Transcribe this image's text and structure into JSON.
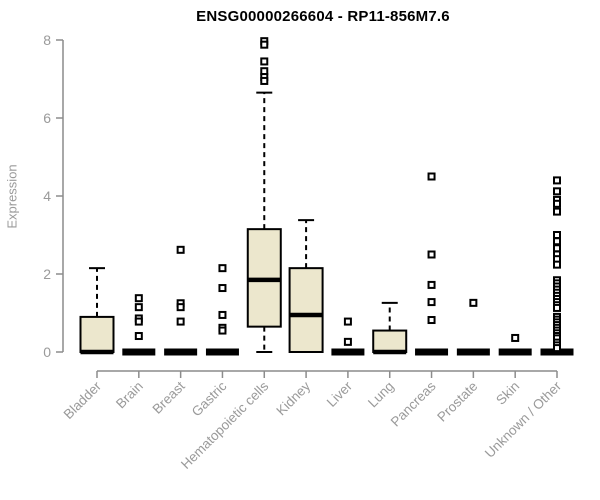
{
  "title": "ENSG00000266604 - RP11-856M7.6",
  "chart_data": {
    "type": "boxplot",
    "title": "ENSG00000266604 - RP11-856M7.6",
    "xlabel": "",
    "ylabel": "Expression",
    "ylim": [
      0,
      8
    ],
    "yticks": [
      0,
      2,
      4,
      6,
      8
    ],
    "grid": false,
    "legend": "none",
    "box_fill_color": "#ece7cd",
    "box_stroke_color": "#000000",
    "axis_color": "#8c8c8c",
    "tick_label_color": "#9a9a9a",
    "categories": [
      "Bladder",
      "Brain",
      "Breast",
      "Gastric",
      "Hematopoietic cells",
      "Kidney",
      "Liver",
      "Lung",
      "Pancreas",
      "Prostate",
      "Skin",
      "Unknown / Other"
    ],
    "series": [
      {
        "category": "Bladder",
        "q1": 0,
        "median": 0,
        "q3": 0.9,
        "whisker_low": 0,
        "whisker_high": 2.15,
        "outliers": []
      },
      {
        "category": "Brain",
        "q1": 0,
        "median": 0,
        "q3": 0,
        "whisker_low": 0,
        "whisker_high": 0,
        "outliers": [
          1.38,
          1.15,
          0.86,
          0.78,
          0.41
        ]
      },
      {
        "category": "Breast",
        "q1": 0,
        "median": 0,
        "q3": 0,
        "whisker_low": 0,
        "whisker_high": 0,
        "outliers": [
          2.62,
          1.25,
          1.15,
          0.78
        ]
      },
      {
        "category": "Gastric",
        "q1": 0,
        "median": 0,
        "q3": 0,
        "whisker_low": 0,
        "whisker_high": 0,
        "outliers": [
          2.15,
          1.64,
          0.95,
          0.62,
          0.55
        ]
      },
      {
        "category": "Hematopoietic cells",
        "q1": 0.65,
        "median": 1.85,
        "q3": 3.15,
        "whisker_low": 0,
        "whisker_high": 6.65,
        "outliers": [
          7.97,
          7.88,
          7.45,
          7.2,
          7.05,
          6.95
        ]
      },
      {
        "category": "Kidney",
        "q1": 0,
        "median": 0.95,
        "q3": 2.15,
        "whisker_low": 0,
        "whisker_high": 3.38,
        "outliers": []
      },
      {
        "category": "Liver",
        "q1": 0,
        "median": 0,
        "q3": 0,
        "whisker_low": 0,
        "whisker_high": 0,
        "outliers": [
          0.78,
          0.26
        ]
      },
      {
        "category": "Lung",
        "q1": 0,
        "median": 0,
        "q3": 0.55,
        "whisker_low": 0,
        "whisker_high": 1.26,
        "outliers": []
      },
      {
        "category": "Pancreas",
        "q1": 0,
        "median": 0,
        "q3": 0,
        "whisker_low": 0,
        "whisker_high": 0,
        "outliers": [
          4.5,
          2.5,
          1.72,
          1.28,
          0.82
        ]
      },
      {
        "category": "Prostate",
        "q1": 0,
        "median": 0,
        "q3": 0,
        "whisker_low": 0,
        "whisker_high": 0,
        "outliers": [
          1.26
        ]
      },
      {
        "category": "Skin",
        "q1": 0,
        "median": 0,
        "q3": 0,
        "whisker_low": 0,
        "whisker_high": 0,
        "outliers": [
          0.36
        ]
      },
      {
        "category": "Unknown / Other",
        "q1": 0,
        "median": 0,
        "q3": 0,
        "whisker_low": 0,
        "whisker_high": 0,
        "outliers": [
          4.4,
          4.12,
          3.9,
          3.8,
          3.6,
          3.0,
          2.84,
          2.66,
          2.5,
          2.38,
          2.24,
          1.84,
          1.76,
          1.68,
          1.6,
          1.52,
          1.44,
          1.36,
          1.28,
          1.2,
          1.13,
          0.9,
          0.83,
          0.76,
          0.69,
          0.62,
          0.55,
          0.48,
          0.41,
          0.35,
          0.24,
          0.17,
          0.1
        ]
      }
    ]
  }
}
